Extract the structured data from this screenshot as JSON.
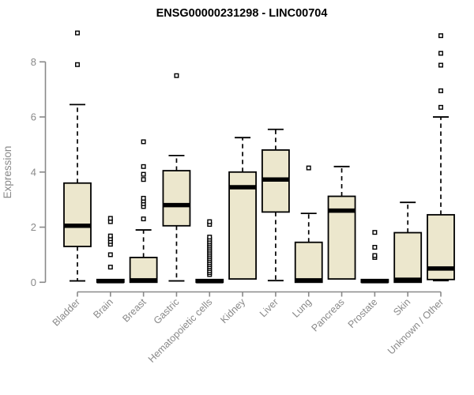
{
  "chart_data": {
    "type": "boxplot",
    "title": "ENSG00000231298 - LINC00704",
    "xlabel": "",
    "ylabel": "Expression",
    "ylim": [
      0,
      9.3
    ],
    "yticks": [
      0,
      2,
      4,
      6,
      8
    ],
    "grid": false,
    "legend": "none",
    "categories": [
      "Bladder",
      "Brain",
      "Breast",
      "Gastric",
      "Hematopoietic cells",
      "Kidney",
      "Liver",
      "Lung",
      "Pancreas",
      "Prostate",
      "Skin",
      "Unknown / Other"
    ],
    "boxes": [
      {
        "category": "Bladder",
        "whisker_low": 0.05,
        "q1": 1.3,
        "median": 2.05,
        "q3": 3.6,
        "whisker_high": 6.45,
        "outliers": [
          7.9,
          9.05
        ]
      },
      {
        "category": "Brain",
        "whisker_low": 0.0,
        "q1": 0.0,
        "median": 0.04,
        "q3": 0.1,
        "whisker_high": 0.1,
        "outliers": [
          0.55,
          1.0,
          1.38,
          1.48,
          1.58,
          1.68,
          2.2,
          2.32
        ]
      },
      {
        "category": "Breast",
        "whisker_low": 0.0,
        "q1": 0.0,
        "median": 0.07,
        "q3": 0.9,
        "whisker_high": 1.9,
        "outliers": [
          2.3,
          2.75,
          2.85,
          2.95,
          3.05,
          3.73,
          3.92,
          4.2,
          5.1
        ]
      },
      {
        "category": "Gastric",
        "whisker_low": 0.05,
        "q1": 2.05,
        "median": 2.8,
        "q3": 4.05,
        "whisker_high": 4.6,
        "outliers": [
          7.5
        ]
      },
      {
        "category": "Hematopoietic cells",
        "whisker_low": 0.0,
        "q1": 0.0,
        "median": 0.04,
        "q3": 0.1,
        "whisker_high": 0.1,
        "outliers": [
          0.28,
          0.35,
          0.42,
          0.5,
          0.57,
          0.64,
          0.71,
          0.78,
          0.85,
          0.92,
          0.99,
          1.06,
          1.13,
          1.2,
          1.27,
          1.34,
          1.41,
          1.48,
          1.56,
          1.64,
          2.1,
          2.2
        ]
      },
      {
        "category": "Kidney",
        "whisker_low": 0.1,
        "q1": 0.12,
        "median": 3.45,
        "q3": 4.0,
        "whisker_high": 5.25,
        "outliers": []
      },
      {
        "category": "Liver",
        "whisker_low": 0.06,
        "q1": 2.55,
        "median": 3.73,
        "q3": 4.8,
        "whisker_high": 5.55,
        "outliers": []
      },
      {
        "category": "Lung",
        "whisker_low": 0.0,
        "q1": 0.0,
        "median": 0.07,
        "q3": 1.45,
        "whisker_high": 2.5,
        "outliers": [
          4.15
        ]
      },
      {
        "category": "Pancreas",
        "whisker_low": 0.1,
        "q1": 0.12,
        "median": 2.6,
        "q3": 3.12,
        "whisker_high": 4.2,
        "outliers": []
      },
      {
        "category": "Prostate",
        "whisker_low": 0.0,
        "q1": 0.0,
        "median": 0.04,
        "q3": 0.1,
        "whisker_high": 0.1,
        "outliers": [
          0.9,
          0.97,
          1.27,
          1.81
        ]
      },
      {
        "category": "Skin",
        "whisker_low": 0.0,
        "q1": 0.0,
        "median": 0.09,
        "q3": 1.8,
        "whisker_high": 2.9,
        "outliers": []
      },
      {
        "category": "Unknown / Other",
        "whisker_low": 0.06,
        "q1": 0.1,
        "median": 0.5,
        "q3": 2.45,
        "whisker_high": 6.0,
        "outliers": [
          6.35,
          6.95,
          7.88,
          8.31,
          8.95
        ]
      }
    ],
    "colors": {
      "box_fill": "#ece7cd",
      "box_border": "#000000",
      "median": "#000000",
      "whisker": "#000000",
      "outlier_stroke": "#000000",
      "outlier_fill": "#ffffff",
      "axis": "#898989",
      "tick_text": "#898989",
      "title_text": "#000000",
      "background": "#ffffff"
    }
  }
}
